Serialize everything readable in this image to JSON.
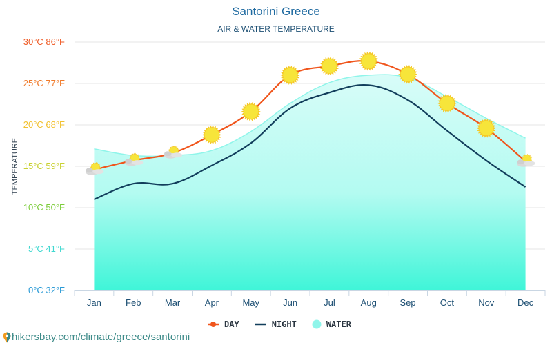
{
  "chart_data": {
    "type": "line",
    "title": "Santorini Greece",
    "subtitle": "AIR & WATER TEMPERATURE",
    "xlabel": "",
    "ylabel": "TEMPERATURE",
    "ylim": [
      0,
      30
    ],
    "grid": true,
    "legend_position": "bottom-center",
    "categories": [
      "Jan",
      "Feb",
      "Mar",
      "Apr",
      "May",
      "Jun",
      "Jul",
      "Aug",
      "Sep",
      "Oct",
      "Nov",
      "Dec"
    ],
    "yticks": [
      {
        "value": 0,
        "label": "0°C 32°F",
        "color": "#2a9ad6"
      },
      {
        "value": 5,
        "label": "5°C 41°F",
        "color": "#3fd8d0"
      },
      {
        "value": 10,
        "label": "10°C 50°F",
        "color": "#7ccc3a"
      },
      {
        "value": 15,
        "label": "15°C 59°F",
        "color": "#c9d132"
      },
      {
        "value": 20,
        "label": "20°C 68°F",
        "color": "#f2c12e"
      },
      {
        "value": 25,
        "label": "25°C 77°F",
        "color": "#f07a2a"
      },
      {
        "value": 30,
        "label": "30°C 86°F",
        "color": "#ef5a24"
      }
    ],
    "series": [
      {
        "name": "DAY",
        "type": "line",
        "color": "#f0551c",
        "values": [
          14.6,
          15.7,
          16.6,
          18.8,
          21.6,
          26.0,
          27.1,
          27.7,
          26.1,
          22.6,
          19.6,
          15.6
        ],
        "markers": [
          "partly-cloudy",
          "partly-cloudy",
          "partly-cloudy",
          "sun",
          "sun",
          "sun",
          "sun",
          "sun",
          "sun",
          "sun",
          "sun",
          "partly-cloudy"
        ]
      },
      {
        "name": "NIGHT",
        "type": "line",
        "color": "#123e5c",
        "values": [
          11.0,
          12.9,
          12.9,
          15.1,
          17.8,
          22.0,
          23.9,
          24.8,
          23.0,
          19.3,
          15.7,
          12.5
        ]
      },
      {
        "name": "WATER",
        "type": "area",
        "color": "#8ff5ea",
        "values": [
          17.1,
          16.3,
          16.3,
          16.9,
          19.2,
          22.6,
          25.1,
          26.0,
          25.7,
          23.4,
          20.8,
          18.4
        ]
      }
    ]
  },
  "legend": {
    "day": "DAY",
    "night": "NIGHT",
    "water": "WATER"
  },
  "source": {
    "text": "hikersbay.com/climate/greece/santorini",
    "icon": "location-pin-icon"
  }
}
